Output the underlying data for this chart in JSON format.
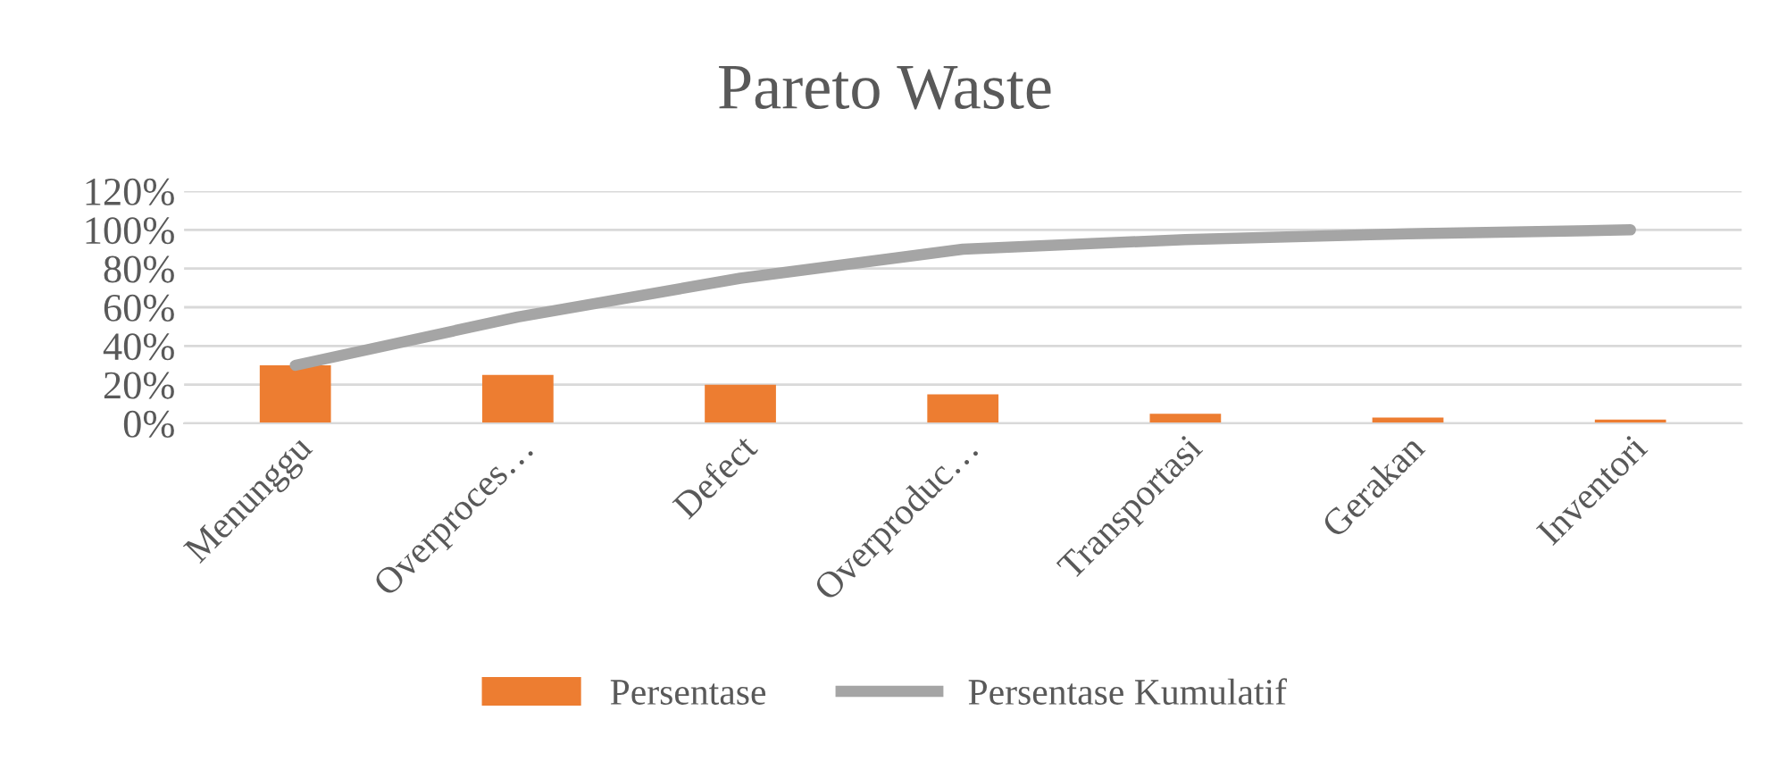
{
  "chart_data": {
    "type": "bar",
    "title": "Pareto Waste",
    "categories": [
      "Menunggu",
      "Overproces…",
      "Defect",
      "Overproduc…",
      "Transportasi",
      "Gerakan",
      "Inventori"
    ],
    "series": [
      {
        "name": "Persentase",
        "color": "#ed7d31",
        "values": [
          30,
          25,
          20,
          15,
          5,
          3,
          2
        ]
      },
      {
        "name": "Persentase Kumulatif",
        "type": "line",
        "color": "#a5a5a5",
        "values": [
          30,
          55,
          75,
          90,
          95,
          98,
          100
        ]
      }
    ],
    "ylim": [
      0,
      120
    ],
    "yticks": [
      {
        "value": 0,
        "label": "0%"
      },
      {
        "value": 20,
        "label": "20%"
      },
      {
        "value": 40,
        "label": "40%"
      },
      {
        "value": 60,
        "label": "60%"
      },
      {
        "value": 80,
        "label": "80%"
      },
      {
        "value": 100,
        "label": "100%"
      },
      {
        "value": 120,
        "label": "120%"
      }
    ],
    "grid": "y",
    "legend": "bottom"
  }
}
